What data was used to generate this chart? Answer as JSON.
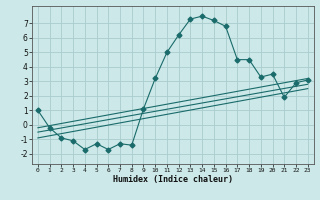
{
  "title": "",
  "xlabel": "Humidex (Indice chaleur)",
  "ylabel": "",
  "bg_color": "#cce8e8",
  "grid_color": "#aacccc",
  "line_color": "#1a6b6b",
  "xlim": [
    -0.5,
    23.5
  ],
  "ylim": [
    -2.7,
    8.2
  ],
  "x_ticks": [
    0,
    1,
    2,
    3,
    4,
    5,
    6,
    7,
    8,
    9,
    10,
    11,
    12,
    13,
    14,
    15,
    16,
    17,
    18,
    19,
    20,
    21,
    22,
    23
  ],
  "y_ticks": [
    -2,
    -1,
    0,
    1,
    2,
    3,
    4,
    5,
    6,
    7
  ],
  "main_series_x": [
    0,
    1,
    2,
    3,
    4,
    5,
    6,
    7,
    8,
    9,
    10,
    11,
    12,
    13,
    14,
    15,
    16,
    17,
    18,
    19,
    20,
    21,
    22,
    23
  ],
  "main_series_y": [
    1.0,
    -0.2,
    -0.9,
    -1.1,
    -1.7,
    -1.3,
    -1.7,
    -1.3,
    -1.4,
    1.1,
    3.2,
    5.0,
    6.2,
    7.3,
    7.5,
    7.2,
    6.8,
    4.5,
    4.5,
    3.3,
    3.5,
    1.9,
    2.9,
    3.1
  ],
  "line1_x": [
    0,
    23
  ],
  "line1_y": [
    -0.2,
    3.2
  ],
  "line2_x": [
    0,
    23
  ],
  "line2_y": [
    -0.5,
    2.8
  ],
  "line3_x": [
    0,
    23
  ],
  "line3_y": [
    -0.9,
    2.5
  ],
  "marker": "D",
  "markersize": 2.5,
  "linewidth": 0.8
}
